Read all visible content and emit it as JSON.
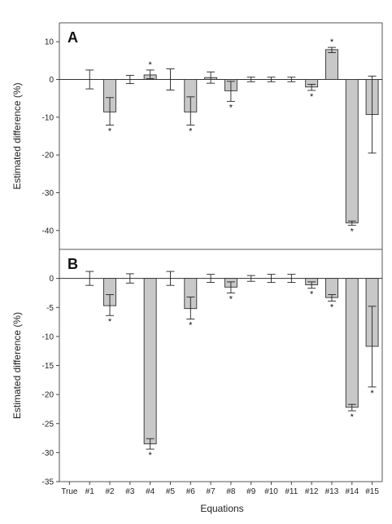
{
  "chart_data": [
    {
      "type": "bar",
      "panel_label": "A",
      "ylabel": "Estimated difference (%)",
      "ylim": [
        -45,
        15
      ],
      "yticks": [
        10,
        0,
        -10,
        -20,
        -30,
        -40
      ],
      "categories": [
        "True",
        "#1",
        "#2",
        "#3",
        "#4",
        "#5",
        "#6",
        "#7",
        "#8",
        "#9",
        "#10",
        "#11",
        "#12",
        "#13",
        "#14",
        "#15"
      ],
      "values": [
        0,
        0,
        -8.6,
        0,
        1.2,
        0,
        -8.6,
        0.5,
        -3.0,
        0,
        0,
        0,
        -2.0,
        7.9,
        -38.0,
        -9.3
      ],
      "err_lower": [
        0,
        2.5,
        3.5,
        1.1,
        1.0,
        2.8,
        3.5,
        1.5,
        2.8,
        0.6,
        0.6,
        0.6,
        0.9,
        0.8,
        0.6,
        10.2
      ],
      "err_upper": [
        0,
        2.5,
        3.8,
        1.1,
        1.3,
        2.8,
        4.0,
        1.5,
        2.5,
        0.6,
        0.6,
        0.6,
        0.7,
        0.6,
        0.5,
        10.2
      ],
      "significant": [
        false,
        false,
        true,
        false,
        true,
        false,
        true,
        false,
        true,
        false,
        false,
        false,
        true,
        true,
        true,
        false
      ]
    },
    {
      "type": "bar",
      "panel_label": "B",
      "xlabel": "Equations",
      "ylabel": "Estimated difference (%)",
      "ylim": [
        -35,
        5
      ],
      "yticks": [
        0,
        -5,
        -10,
        -15,
        -20,
        -25,
        -30,
        -35
      ],
      "categories": [
        "True",
        "#1",
        "#2",
        "#3",
        "#4",
        "#5",
        "#6",
        "#7",
        "#8",
        "#9",
        "#10",
        "#11",
        "#12",
        "#13",
        "#14",
        "#15"
      ],
      "values": [
        0,
        0,
        -4.7,
        0,
        -28.5,
        0,
        -5.2,
        0,
        -1.5,
        0,
        0,
        0,
        -1.1,
        -3.3,
        -22.2,
        -11.7
      ],
      "err_lower": [
        0,
        1.2,
        1.7,
        0.8,
        0.9,
        1.2,
        1.8,
        0.7,
        1.0,
        0.5,
        0.7,
        0.7,
        0.6,
        0.6,
        0.6,
        7.0
      ],
      "err_upper": [
        0,
        1.2,
        1.9,
        0.8,
        0.9,
        1.2,
        2.0,
        0.7,
        0.9,
        0.5,
        0.7,
        0.7,
        0.5,
        0.5,
        0.5,
        6.9
      ],
      "significant": [
        false,
        false,
        true,
        false,
        true,
        false,
        true,
        false,
        true,
        false,
        false,
        false,
        true,
        true,
        true,
        true
      ]
    }
  ],
  "significance_marker": "*"
}
